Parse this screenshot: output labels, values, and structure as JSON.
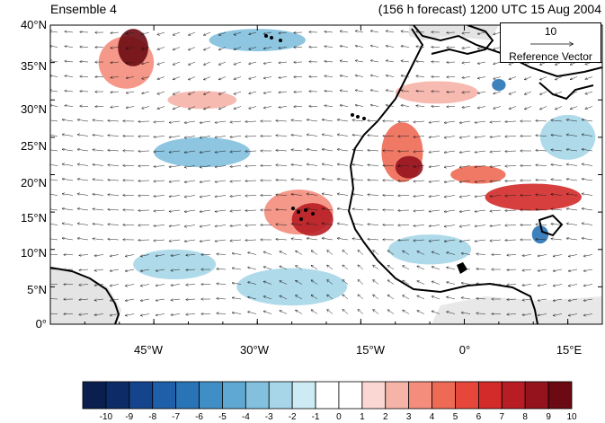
{
  "header": {
    "left_title": "Ensemble 4",
    "right_title": "(156 h forecast) 1200 UTC 15 Aug 2004"
  },
  "map": {
    "lon_range": [
      -60,
      20
    ],
    "lat_range": [
      0,
      40
    ],
    "y_ticks": [
      "0°",
      "5°N",
      "10°N",
      "15°N",
      "20°N",
      "25°N",
      "30°N",
      "35°N",
      "40°N"
    ],
    "x_ticks": [
      "45°W",
      "30°W",
      "15°W",
      "0°",
      "15°E"
    ],
    "reference_vector": {
      "value": "10",
      "label": "Reference Vector"
    }
  },
  "colorbar": {
    "labels": [
      "-10",
      "-9",
      "-8",
      "-7",
      "-6",
      "-5",
      "-4",
      "-3",
      "-2",
      "-1",
      "0",
      "1",
      "2",
      "3",
      "4",
      "5",
      "6",
      "7",
      "8",
      "9",
      "10"
    ],
    "colors": [
      "#0a1f4d",
      "#0d2b66",
      "#14448c",
      "#1f5ea8",
      "#2874b6",
      "#3f8fc6",
      "#5ea8d3",
      "#82c0de",
      "#a6d6e8",
      "#cdebf4",
      "#ffffff",
      "#ffffff",
      "#fbd7d3",
      "#f6b3a8",
      "#f48d7c",
      "#ee6a55",
      "#e6473a",
      "#d32a2a",
      "#b81d24",
      "#95131d",
      "#6b0a12"
    ]
  },
  "anomalies": [
    {
      "lon": -48,
      "lat": 37,
      "value": 10,
      "rx": 2.2,
      "ry": 2.5
    },
    {
      "lon": -49,
      "lat": 35,
      "value": 4,
      "rx": 4,
      "ry": 3.5
    },
    {
      "lon": -22,
      "lat": 14,
      "value": 8,
      "rx": 3,
      "ry": 2.2
    },
    {
      "lon": -24,
      "lat": 15,
      "value": 4,
      "rx": 5,
      "ry": 3
    },
    {
      "lon": -8,
      "lat": 21,
      "value": 9,
      "rx": 2,
      "ry": 1.5
    },
    {
      "lon": -9,
      "lat": 23,
      "value": 5,
      "rx": 3,
      "ry": 4
    },
    {
      "lon": 10,
      "lat": 17,
      "value": 7,
      "rx": 7,
      "ry": 1.8
    },
    {
      "lon": 2,
      "lat": 20,
      "value": 5,
      "rx": 4,
      "ry": 1.2
    },
    {
      "lon": -4,
      "lat": 31,
      "value": 3,
      "rx": 6,
      "ry": 1.5
    },
    {
      "lon": -38,
      "lat": 30,
      "value": 3,
      "rx": 5,
      "ry": 1.2
    },
    {
      "lon": -30,
      "lat": 38,
      "value": -3,
      "rx": 7,
      "ry": 1.5
    },
    {
      "lon": -38,
      "lat": 23,
      "value": -3,
      "rx": 7,
      "ry": 2
    },
    {
      "lon": -25,
      "lat": 5,
      "value": -2,
      "rx": 8,
      "ry": 2.5
    },
    {
      "lon": -42,
      "lat": 8,
      "value": -2,
      "rx": 6,
      "ry": 2
    },
    {
      "lon": 11,
      "lat": 12,
      "value": -6,
      "rx": 1.2,
      "ry": 1.2
    },
    {
      "lon": 5,
      "lat": 32,
      "value": -6,
      "rx": 1,
      "ry": 0.8
    },
    {
      "lon": -5,
      "lat": 10,
      "value": -2,
      "rx": 6,
      "ry": 2
    },
    {
      "lon": 15,
      "lat": 25,
      "value": -2,
      "rx": 4,
      "ry": 3
    }
  ]
}
